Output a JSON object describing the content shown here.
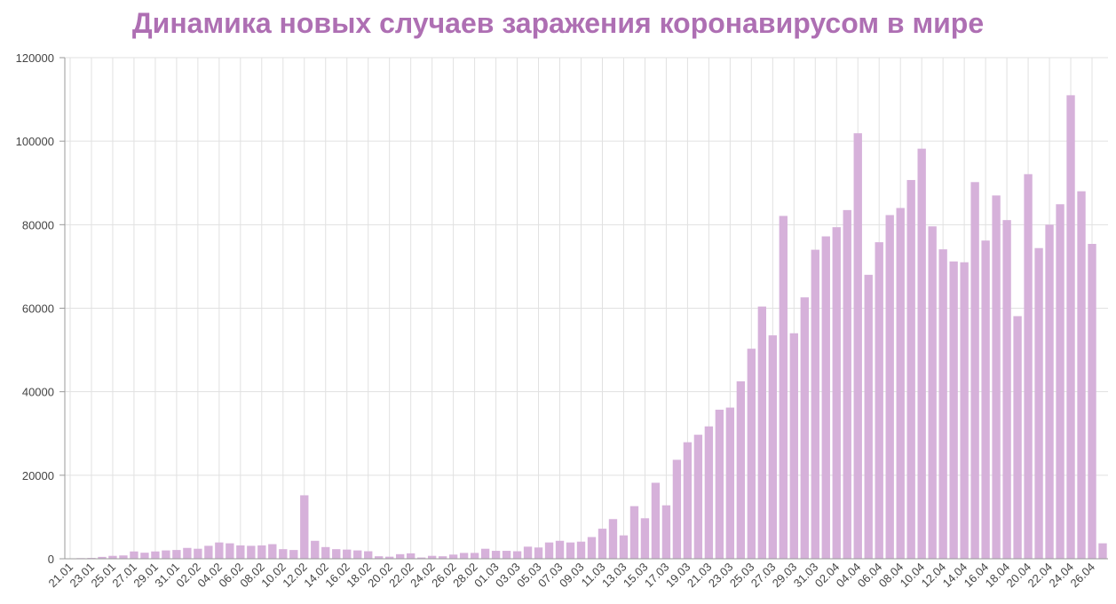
{
  "colors": {
    "title": "#ae6fb3",
    "bar": "#d6b1da",
    "grid": "#e1e1e1",
    "axis": "#9a9a9a"
  },
  "chart_data": {
    "type": "bar",
    "title": "Динамика новых случаев заражения коронавирусом в мире",
    "xlabel": "",
    "ylabel": "",
    "ylim": [
      0,
      120000
    ],
    "yticks": [
      0,
      20000,
      40000,
      60000,
      80000,
      100000,
      120000
    ],
    "grid": true,
    "categories": [
      "21.01",
      "22.01",
      "23.01",
      "24.01",
      "25.01",
      "26.01",
      "27.01",
      "28.01",
      "29.01",
      "30.01",
      "31.01",
      "01.02",
      "02.02",
      "03.02",
      "04.02",
      "05.02",
      "06.02",
      "07.02",
      "08.02",
      "09.02",
      "10.02",
      "11.02",
      "12.02",
      "13.02",
      "14.02",
      "15.02",
      "16.02",
      "17.02",
      "18.02",
      "19.02",
      "20.02",
      "21.02",
      "22.02",
      "23.02",
      "24.02",
      "25.02",
      "26.02",
      "27.02",
      "28.02",
      "29.02",
      "01.03",
      "02.03",
      "03.03",
      "04.03",
      "05.03",
      "06.03",
      "07.03",
      "08.03",
      "09.03",
      "10.03",
      "11.03",
      "12.03",
      "13.03",
      "14.03",
      "15.03",
      "16.03",
      "17.03",
      "18.03",
      "19.03",
      "20.03",
      "21.03",
      "22.03",
      "23.03",
      "24.03",
      "25.03",
      "26.03",
      "27.03",
      "28.03",
      "29.03",
      "30.03",
      "31.03",
      "01.04",
      "02.04",
      "03.04",
      "04.04",
      "05.04",
      "06.04",
      "07.04",
      "08.04",
      "09.04",
      "10.04",
      "11.04",
      "12.04",
      "13.04",
      "14.04",
      "15.04",
      "16.04",
      "17.04",
      "18.04",
      "19.04",
      "20.04",
      "21.04",
      "22.04",
      "23.04",
      "24.04",
      "25.04",
      "26.04",
      "27.04"
    ],
    "values": [
      100,
      150,
      200,
      450,
      700,
      800,
      1750,
      1450,
      1750,
      2000,
      2100,
      2600,
      2400,
      3100,
      3900,
      3700,
      3200,
      3100,
      3200,
      3500,
      2300,
      2100,
      15200,
      4300,
      2800,
      2300,
      2200,
      2000,
      1800,
      600,
      500,
      1100,
      1300,
      300,
      700,
      600,
      1000,
      1400,
      1400,
      2400,
      1900,
      1900,
      1800,
      2900,
      2700,
      3900,
      4300,
      3900,
      4100,
      5200,
      7200,
      9500,
      5600,
      12600,
      9700,
      18200,
      12800,
      23700,
      27900,
      29700,
      31700,
      35700,
      36200,
      42500,
      50300,
      60400,
      53500,
      82100,
      54000,
      62600,
      74000,
      77200,
      79400,
      83500,
      101900,
      68000,
      75800,
      82300,
      84000,
      90700,
      98200,
      79600,
      74100,
      71200,
      71000,
      90200,
      76200,
      87000,
      81100,
      58100,
      92100,
      74400,
      80000,
      84900,
      111000,
      88000,
      75400,
      3700
    ]
  }
}
